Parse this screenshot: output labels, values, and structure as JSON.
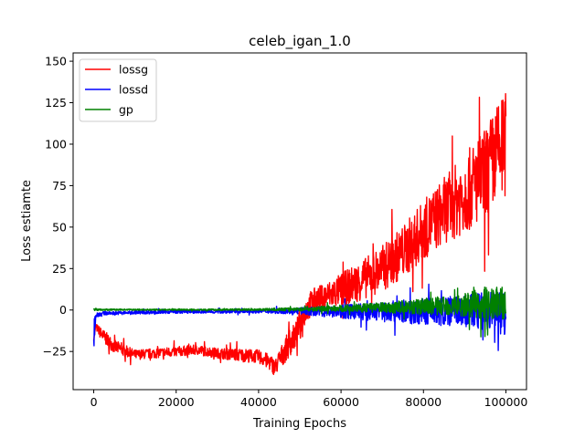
{
  "chart_data": {
    "type": "line",
    "title": "celeb_igan_1.0",
    "xlabel": "Training Epochs",
    "ylabel": "Loss estiamte",
    "xlim": [
      -5000,
      105000
    ],
    "ylim": [
      -48,
      155
    ],
    "xticks": [
      0,
      20000,
      40000,
      60000,
      80000,
      100000
    ],
    "xtick_labels": [
      "0",
      "20000",
      "40000",
      "60000",
      "80000",
      "100000"
    ],
    "yticks": [
      -25,
      0,
      25,
      50,
      75,
      100,
      125,
      150
    ],
    "ytick_labels": [
      "−25",
      "0",
      "25",
      "50",
      "75",
      "100",
      "125",
      "150"
    ],
    "grid": false,
    "legend_position": "upper-left",
    "series": [
      {
        "name": "lossg",
        "color": "#ff0000",
        "x": [
          0,
          500,
          2000,
          5000,
          10000,
          15000,
          20000,
          25000,
          30000,
          35000,
          40000,
          43000,
          44000,
          45000,
          47000,
          49000,
          50000,
          51000,
          53000,
          56000,
          60000,
          65000,
          70000,
          75000,
          80000,
          85000,
          90000,
          95000,
          98000,
          100000
        ],
        "y": [
          -18,
          -10,
          -15,
          -22,
          -27,
          -26,
          -25,
          -24,
          -26,
          -27,
          -28,
          -32,
          -35,
          -30,
          -22,
          -15,
          -8,
          -2,
          5,
          8,
          12,
          18,
          25,
          35,
          48,
          60,
          70,
          82,
          95,
          100
        ],
        "band": [
          0,
          2,
          4,
          4,
          3,
          3,
          3,
          3,
          3,
          4,
          4,
          5,
          5,
          6,
          8,
          8,
          8,
          8,
          8,
          8,
          10,
          12,
          14,
          16,
          18,
          20,
          24,
          28,
          30,
          32
        ]
      },
      {
        "name": "lossd",
        "color": "#0000ff",
        "x": [
          0,
          500,
          2000,
          10000,
          20000,
          30000,
          40000,
          50000,
          55000,
          60000,
          70000,
          80000,
          90000,
          95000,
          100000
        ],
        "y": [
          -15,
          -3,
          -2,
          -1.5,
          -1,
          -1,
          -0.8,
          -0.5,
          -1,
          -1,
          -1,
          -1,
          -1,
          -1,
          -1
        ],
        "band": [
          12,
          2,
          1,
          1,
          1,
          1,
          1,
          2,
          3,
          4,
          6,
          8,
          10,
          12,
          14
        ]
      },
      {
        "name": "gp",
        "color": "#008000",
        "x": [
          0,
          1000,
          10000,
          20000,
          30000,
          40000,
          50000,
          60000,
          70000,
          80000,
          90000,
          95000,
          100000
        ],
        "y": [
          0.5,
          0.2,
          0.2,
          0.2,
          0.2,
          0.3,
          0.5,
          1,
          1.5,
          2,
          3,
          4,
          4
        ],
        "band": [
          1,
          0.5,
          0.4,
          0.4,
          0.5,
          0.6,
          1,
          2,
          3,
          5,
          7,
          10,
          10
        ]
      }
    ]
  }
}
